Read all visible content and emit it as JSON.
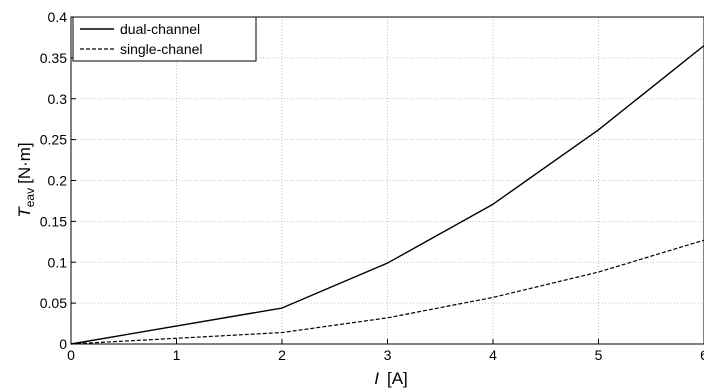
{
  "chart_data": {
    "type": "line",
    "title": "",
    "xlabel": {
      "symbol": "I",
      "unit": "[A]"
    },
    "ylabel": {
      "symbol": "T",
      "subscript": "eav",
      "unit": "[N·m]"
    },
    "xlim": [
      0,
      6
    ],
    "ylim": [
      0,
      0.4
    ],
    "x_ticks": [
      "0",
      "1",
      "2",
      "3",
      "4",
      "5",
      "6"
    ],
    "y_ticks": [
      "0",
      "0.05",
      "0.1",
      "0.15",
      "0.2",
      "0.25",
      "0.3",
      "0.35",
      "0.4"
    ],
    "grid": true,
    "legend_position": "top-left",
    "x": [
      0,
      2,
      3,
      4,
      5,
      6
    ],
    "series": [
      {
        "name": "dual-channel",
        "line_style": "solid",
        "values": [
          0,
          0.044,
          0.099,
          0.171,
          0.262,
          0.365
        ]
      },
      {
        "name": "single-chanel",
        "line_style": "dashed",
        "values": [
          0,
          0.014,
          0.032,
          0.057,
          0.088,
          0.127
        ]
      }
    ]
  }
}
